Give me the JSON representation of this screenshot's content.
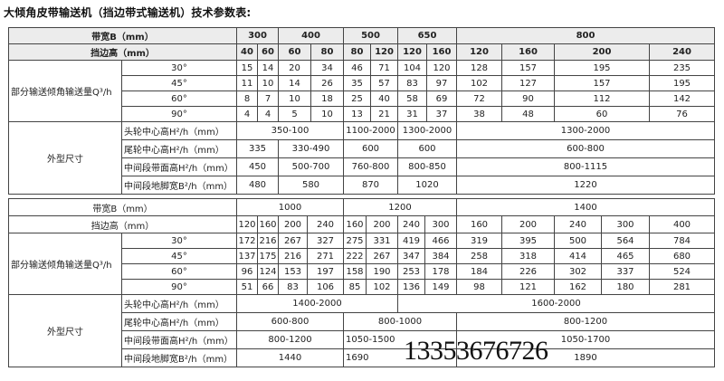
{
  "title": "大倾角皮带输送机（挡边带式输送机）技术参数表:",
  "watermark": "13353676726",
  "labels": {
    "belt_width": "带宽B（mm）",
    "skirt_height": "挡边高（mm）",
    "capacity": "部分输送倾角输送量Q³/h",
    "dimensions": "外型尺寸",
    "head_height": "头轮中心高H²/h（mm）",
    "tail_height": "尾轮中心高H²/h（mm）",
    "mid_belt_height": "中间段带面高H²/h（mm）",
    "mid_foot_width": "中间段地脚宽B²/h（mm）",
    "angles": [
      "30°",
      "45°",
      "60°",
      "90°"
    ]
  },
  "table1": {
    "widths": [
      {
        "label": "300",
        "span": 2
      },
      {
        "label": "400",
        "span": 2
      },
      {
        "label": "500",
        "span": 2
      },
      {
        "label": "650",
        "span": 2
      },
      {
        "label": "800",
        "span": 4
      }
    ],
    "skirts": [
      "40",
      "60",
      "60",
      "80",
      "80",
      "120",
      "120",
      "160",
      "120",
      "160",
      "200",
      "240"
    ],
    "capacity": [
      [
        "15",
        "14",
        "20",
        "34",
        "46",
        "71",
        "104",
        "120",
        "128",
        "157",
        "195",
        "235"
      ],
      [
        "11",
        "10",
        "14",
        "26",
        "35",
        "57",
        "83",
        "97",
        "102",
        "127",
        "157",
        "195"
      ],
      [
        "8",
        "7",
        "10",
        "18",
        "25",
        "40",
        "58",
        "69",
        "72",
        "90",
        "112",
        "142"
      ],
      [
        "4",
        "4",
        "5",
        "10",
        "13",
        "21",
        "31",
        "37",
        "38",
        "48",
        "60",
        "76"
      ]
    ],
    "dims": [
      [
        {
          "v": "350-100",
          "span": 4
        },
        {
          "v": "1100-2000",
          "span": 2
        },
        {
          "v": "1300-2000",
          "span": 2
        },
        {
          "v": "1300-2000",
          "span": 4
        }
      ],
      [
        {
          "v": "335",
          "span": 2
        },
        {
          "v": "330-490",
          "span": 2
        },
        {
          "v": "600",
          "span": 2
        },
        {
          "v": "600",
          "span": 2
        },
        {
          "v": "600-800",
          "span": 4
        }
      ],
      [
        {
          "v": "450",
          "span": 2
        },
        {
          "v": "500-700",
          "span": 2
        },
        {
          "v": "760-800",
          "span": 2
        },
        {
          "v": "800-850",
          "span": 2
        },
        {
          "v": "800-1115",
          "span": 4
        }
      ],
      [
        {
          "v": "480",
          "span": 2
        },
        {
          "v": "580",
          "span": 2
        },
        {
          "v": "870",
          "span": 2
        },
        {
          "v": "1020",
          "span": 2
        },
        {
          "v": "1220",
          "span": 4
        }
      ]
    ]
  },
  "table2": {
    "widths": [
      {
        "label": "1000",
        "span": 4
      },
      {
        "label": "1200",
        "span": 4
      },
      {
        "label": "1400",
        "span": 5
      }
    ],
    "skirts": [
      "120",
      "160",
      "200",
      "240",
      "160",
      "200",
      "240",
      "300",
      "160",
      "200",
      "240",
      "300",
      "400"
    ],
    "capacity": [
      [
        "172",
        "216",
        "267",
        "327",
        "275",
        "331",
        "419",
        "466",
        "319",
        "395",
        "500",
        "564",
        "784"
      ],
      [
        "137",
        "175",
        "216",
        "271",
        "222",
        "267",
        "347",
        "384",
        "258",
        "318",
        "414",
        "465",
        "680"
      ],
      [
        "96",
        "124",
        "153",
        "197",
        "158",
        "190",
        "253",
        "178",
        "184",
        "226",
        "302",
        "337",
        "524"
      ],
      [
        "51",
        "66",
        "83",
        "106",
        "85",
        "102",
        "136",
        "149",
        "98",
        "121",
        "162",
        "180",
        "281"
      ]
    ],
    "dims": [
      [
        {
          "v": "1400-2000",
          "span": 6
        },
        {
          "v": "1600-2000",
          "span": 7
        }
      ],
      [
        {
          "v": "600-800",
          "span": 4
        },
        {
          "v": "800-1000",
          "span": 4
        },
        {
          "v": "800-1200",
          "span": 5
        }
      ],
      [
        {
          "v": "800-1200",
          "span": 4
        },
        {
          "v": "1050-1500",
          "span": 4
        },
        {
          "v": "1050-1700",
          "span": 5
        }
      ],
      [
        {
          "v": "1440",
          "span": 4
        },
        {
          "v": "1690",
          "span": 4
        },
        {
          "v": "1890",
          "span": 5
        }
      ]
    ]
  }
}
